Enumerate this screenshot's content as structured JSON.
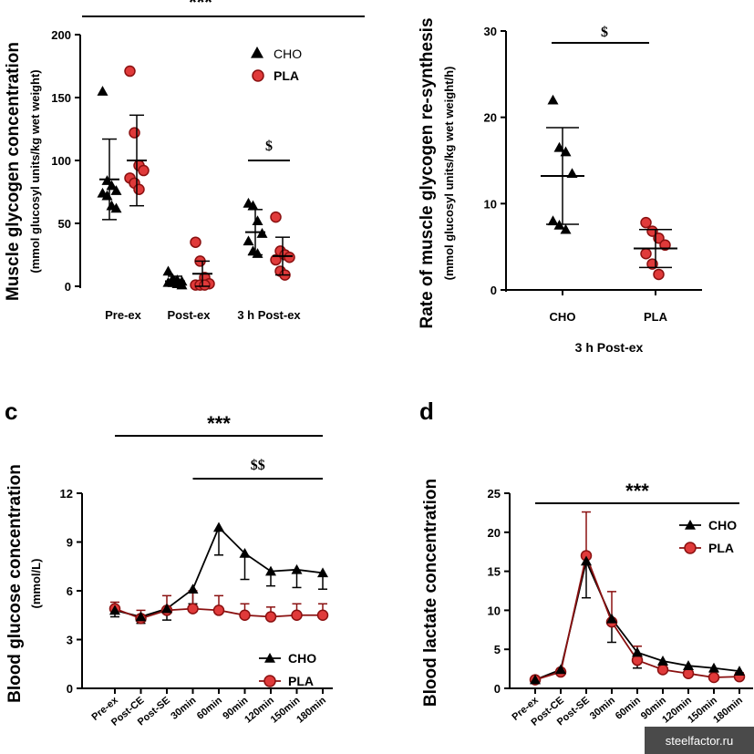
{
  "colors": {
    "cho": "#000000",
    "pla": "#e03a3a",
    "pla_stroke": "#8a1010"
  },
  "chart_data": [
    {
      "type": "scatter",
      "panel": "",
      "ylabel": "Muscle glycogen concentration",
      "ylabel2": "(mmol glucosyl units/kg wet weight)",
      "categories": [
        "Pre-ex",
        "Post-ex",
        "3 h Post-ex"
      ],
      "ylim": [
        0,
        200
      ],
      "yticks": [
        0,
        50,
        100,
        150,
        200
      ],
      "legend": {
        "position": "top-right",
        "entries": [
          "CHO",
          "PLA"
        ]
      },
      "series": [
        {
          "name": "CHO",
          "marker": "triangle",
          "points": [
            [
              155,
              84,
              80,
              76,
              74,
              72,
              64,
              62
            ],
            [
              12,
              6,
              5,
              4,
              3,
              3,
              2,
              1
            ],
            [
              66,
              64,
              52,
              42,
              36,
              28,
              26
            ]
          ],
          "mean": [
            85,
            4,
            43
          ],
          "sd": [
            32,
            4,
            18
          ]
        },
        {
          "name": "PLA",
          "marker": "circle",
          "points": [
            [
              171,
              122,
              96,
              92,
              86,
              82,
              77
            ],
            [
              35,
              20,
              7,
              2,
              1,
              1,
              1
            ],
            [
              55,
              28,
              25,
              23,
              21,
              12,
              9
            ]
          ],
          "mean": [
            100,
            10,
            24
          ],
          "sd": [
            36,
            10,
            15
          ]
        }
      ],
      "annotations": [
        {
          "text": "***",
          "from": 0,
          "to": 2.5,
          "y": 218
        },
        {
          "text": "$",
          "from": 2,
          "to": 2,
          "y": 100
        }
      ]
    },
    {
      "type": "scatter",
      "panel": "",
      "ylabel": "Rate of muscle glycogen re-synthesis",
      "ylabel2": "(mmol glucosyl units/kg wet weight/h)",
      "xlabel": "3 h Post-ex",
      "categories": [
        "CHO",
        "PLA"
      ],
      "ylim": [
        0,
        30
      ],
      "yticks": [
        0,
        10,
        20,
        30
      ],
      "series": [
        {
          "name": "CHO",
          "marker": "triangle",
          "values": [
            22,
            16.5,
            16,
            13.5,
            8,
            7.5,
            7
          ],
          "mean": 13.2,
          "sd": 5.6
        },
        {
          "name": "PLA",
          "marker": "circle",
          "values": [
            7.8,
            6.8,
            6,
            5.2,
            4.2,
            3,
            1.8
          ],
          "mean": 4.8,
          "sd": 2.2
        }
      ],
      "annotations": [
        {
          "text": "$",
          "y": 29
        }
      ]
    },
    {
      "type": "line",
      "panel": "c",
      "ylabel": "Blood glucose concentration",
      "ylabel2": "(mmol/L)",
      "categories": [
        "Pre-ex",
        "Post-CE",
        "Post-SE",
        "30min",
        "60min",
        "90min",
        "120min",
        "150min",
        "180min"
      ],
      "ylim": [
        0,
        12
      ],
      "yticks": [
        0,
        3,
        6,
        9,
        12
      ],
      "legend": {
        "position": "bottom-right",
        "entries": [
          "CHO",
          "PLA"
        ]
      },
      "series": [
        {
          "name": "CHO",
          "values": [
            4.8,
            4.4,
            4.9,
            6.1,
            9.9,
            8.3,
            7.2,
            7.3,
            7.1
          ],
          "err": [
            0.4,
            0.4,
            0.7,
            0.9,
            1.7,
            1.6,
            0.9,
            1.1,
            1.0
          ]
        },
        {
          "name": "PLA",
          "values": [
            4.9,
            4.3,
            4.8,
            4.9,
            4.8,
            4.5,
            4.4,
            4.5,
            4.5
          ],
          "err": [
            0.4,
            0.5,
            0.9,
            1.1,
            0.9,
            0.7,
            0.6,
            0.7,
            0.7
          ]
        }
      ],
      "annotations": [
        {
          "text": "***",
          "from": 0,
          "to": 8
        },
        {
          "text": "$$",
          "from": 3,
          "to": 8
        }
      ]
    },
    {
      "type": "line",
      "panel": "d",
      "ylabel": "Blood lactate concentration",
      "ylabel2": "",
      "categories": [
        "Pre-ex",
        "Post-CE",
        "Post-SE",
        "30min",
        "60min",
        "90min",
        "120min",
        "150min",
        "180min"
      ],
      "ylim": [
        0,
        25
      ],
      "yticks": [
        0,
        5,
        10,
        15,
        20,
        25
      ],
      "legend": {
        "position": "top-right",
        "entries": [
          "CHO",
          "PLA"
        ]
      },
      "series": [
        {
          "name": "CHO",
          "values": [
            1.1,
            2.4,
            16.3,
            8.9,
            4.6,
            3.5,
            2.9,
            2.6,
            2.2
          ],
          "err": [
            0.3,
            0.5,
            4.7,
            3.0,
            2.0,
            0.5,
            0.4,
            0.5,
            0.5
          ]
        },
        {
          "name": "PLA",
          "values": [
            1.1,
            2.1,
            17.0,
            8.5,
            3.6,
            2.4,
            1.9,
            1.4,
            1.5
          ],
          "err": [
            0.3,
            0.4,
            5.6,
            3.9,
            1.8,
            0.7,
            0.5,
            0.4,
            0.5
          ]
        }
      ],
      "annotations": [
        {
          "text": "***",
          "from": 0,
          "to": 8
        }
      ]
    }
  ],
  "watermark": "steelfactor.ru"
}
